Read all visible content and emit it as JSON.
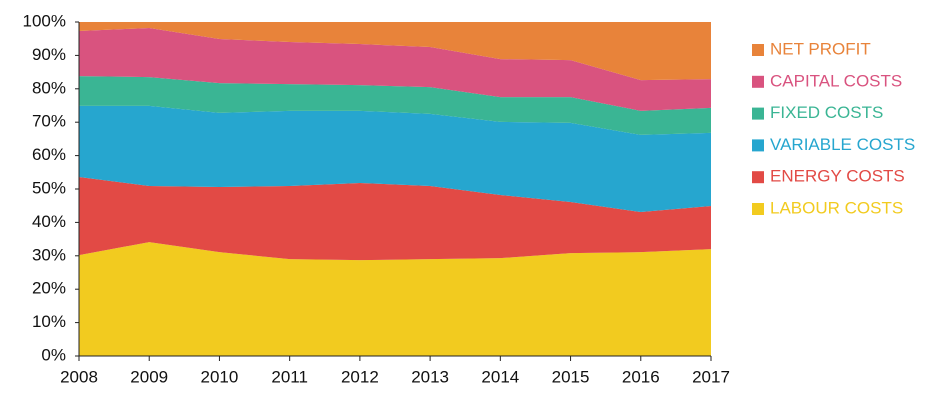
{
  "chart_data": {
    "type": "stacked-area",
    "x": [
      2008,
      2009,
      2010,
      2011,
      2012,
      2013,
      2014,
      2015,
      2016,
      2017
    ],
    "xlim": [
      2008,
      2017
    ],
    "xticks": [
      2008,
      2009,
      2010,
      2011,
      2012,
      2013,
      2014,
      2015,
      2016,
      2017
    ],
    "ylim": [
      0,
      100
    ],
    "yticks": [
      {
        "value": 0,
        "label": "0%"
      },
      {
        "value": 10,
        "label": "10%"
      },
      {
        "value": 20,
        "label": "20%"
      },
      {
        "value": 30,
        "label": "30%"
      },
      {
        "value": 40,
        "label": "40%"
      },
      {
        "value": 50,
        "label": "50%"
      },
      {
        "value": 60,
        "label": "60%"
      },
      {
        "value": 70,
        "label": "70%"
      },
      {
        "value": 80,
        "label": "80%"
      },
      {
        "value": 90,
        "label": "90%"
      },
      {
        "value": 100,
        "label": "100%"
      }
    ],
    "legend_position": "right",
    "series": [
      {
        "name": "LABOUR COSTS",
        "color": "#f2cb1f",
        "values": [
          30.2,
          34.1,
          31.1,
          29,
          28.7,
          29,
          29.3,
          30.8,
          31.1,
          32
        ]
      },
      {
        "name": "ENERGY COSTS",
        "color": "#e24a45",
        "values": [
          23.4,
          16.8,
          19.5,
          21.9,
          23.1,
          21.9,
          18.9,
          15.3,
          12,
          12.9
        ]
      },
      {
        "name": "VARIABLE COSTS",
        "color": "#26a6cf",
        "values": [
          21.3,
          24,
          22.2,
          22.5,
          21.6,
          21.6,
          21.9,
          23.7,
          23.1,
          21.9
        ]
      },
      {
        "name": "FIXED COSTS",
        "color": "#3ab594",
        "values": [
          8.9,
          8.6,
          8.9,
          8,
          7.7,
          8,
          7.4,
          7.7,
          7.2,
          7.5
        ]
      },
      {
        "name": "CAPITAL COSTS",
        "color": "#d9537f",
        "values": [
          13.5,
          14.7,
          13.2,
          12.6,
          12.3,
          12,
          11.4,
          11.1,
          9.2,
          8.6
        ]
      },
      {
        "name": "NET PROFIT",
        "color": "#e8833a",
        "values": [
          2.7,
          1.8,
          5.1,
          6,
          6.6,
          7.5,
          11.1,
          11.4,
          17.4,
          17.1
        ]
      }
    ]
  }
}
